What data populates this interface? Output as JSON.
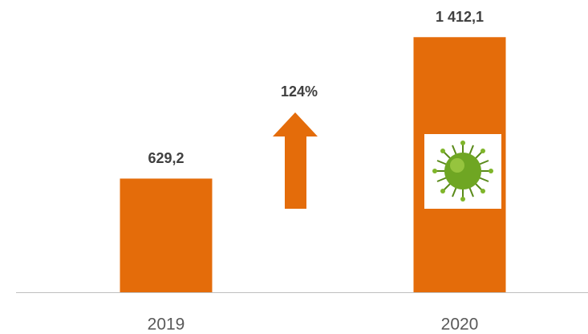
{
  "chart_data": {
    "type": "bar",
    "categories": [
      "2019",
      "2020"
    ],
    "values": [
      629.2,
      1412.1
    ],
    "value_labels": [
      "629,2",
      "1 412,1"
    ],
    "color": "#e46c0a",
    "ylim": [
      0,
      1600
    ],
    "annotation": "124%"
  }
}
